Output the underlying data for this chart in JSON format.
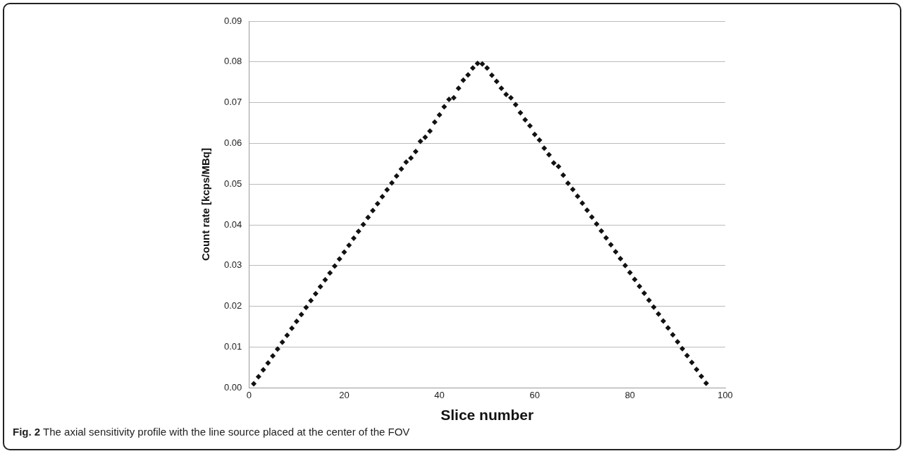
{
  "chart_data": {
    "type": "scatter",
    "xlabel": "Slice number",
    "ylabel": "Count rate [kcps/MBq]",
    "annotations": [
      "Fig. 2 The axial sensitivity profile with the line source placed at the center of the FOV"
    ],
    "x": [
      1,
      2,
      3,
      4,
      5,
      6,
      7,
      8,
      9,
      10,
      11,
      12,
      13,
      14,
      15,
      16,
      17,
      18,
      19,
      20,
      21,
      22,
      23,
      24,
      25,
      26,
      27,
      28,
      29,
      30,
      31,
      32,
      33,
      34,
      35,
      36,
      37,
      38,
      39,
      40,
      41,
      42,
      43,
      44,
      45,
      46,
      47,
      48,
      49,
      50,
      51,
      52,
      53,
      54,
      55,
      56,
      57,
      58,
      59,
      60,
      61,
      62,
      63,
      64,
      65,
      66,
      67,
      68,
      69,
      70,
      71,
      72,
      73,
      74,
      75,
      76,
      77,
      78,
      79,
      80,
      81,
      82,
      83,
      84,
      85,
      86,
      87,
      88,
      89,
      90,
      91,
      92,
      93,
      94,
      95,
      96
    ],
    "series": [
      {
        "color": "#111111",
        "values": [
          0.001,
          0.0027,
          0.0044,
          0.0061,
          0.0078,
          0.0095,
          0.0112,
          0.0129,
          0.0146,
          0.0163,
          0.018,
          0.0197,
          0.0214,
          0.0231,
          0.0248,
          0.0265,
          0.0282,
          0.0299,
          0.0316,
          0.0333,
          0.035,
          0.0367,
          0.0384,
          0.0401,
          0.0418,
          0.0435,
          0.0452,
          0.0469,
          0.0486,
          0.0503,
          0.052,
          0.0537,
          0.0554,
          0.0564,
          0.058,
          0.0605,
          0.0615,
          0.063,
          0.0652,
          0.067,
          0.069,
          0.0708,
          0.0712,
          0.0735,
          0.0755,
          0.0768,
          0.0785,
          0.0796,
          0.0795,
          0.0785,
          0.0767,
          0.0752,
          0.0735,
          0.072,
          0.0712,
          0.0695,
          0.0675,
          0.0658,
          0.0643,
          0.0622,
          0.0608,
          0.0588,
          0.0572,
          0.0552,
          0.0543,
          0.0522,
          0.0502,
          0.0487,
          0.047,
          0.0453,
          0.0436,
          0.0419,
          0.0402,
          0.0385,
          0.0368,
          0.0351,
          0.0334,
          0.0317,
          0.03,
          0.0283,
          0.0266,
          0.0249,
          0.0232,
          0.0215,
          0.0198,
          0.0181,
          0.0164,
          0.0147,
          0.013,
          0.0113,
          0.0096,
          0.0079,
          0.0062,
          0.0045,
          0.0028,
          0.0011
        ]
      }
    ],
    "xlim": [
      0,
      100
    ],
    "xticks": [
      0,
      20,
      40,
      60,
      80,
      100
    ],
    "ylim": [
      0,
      0.09
    ],
    "yticks": [
      {
        "value": 0,
        "label": "0.00"
      },
      {
        "value": 0.01,
        "label": "0.01"
      },
      {
        "value": 0.02,
        "label": "0.02"
      },
      {
        "value": 0.03,
        "label": "0.03"
      },
      {
        "value": 0.04,
        "label": "0.04"
      },
      {
        "value": 0.05,
        "label": "0.05"
      },
      {
        "value": 0.06,
        "label": "0.06"
      },
      {
        "value": 0.07,
        "label": "0.07"
      },
      {
        "value": 0.08,
        "label": "0.08"
      },
      {
        "value": 0.09,
        "label": "0.09"
      }
    ],
    "grid": "y",
    "legend": false,
    "marker": "diamond"
  }
}
